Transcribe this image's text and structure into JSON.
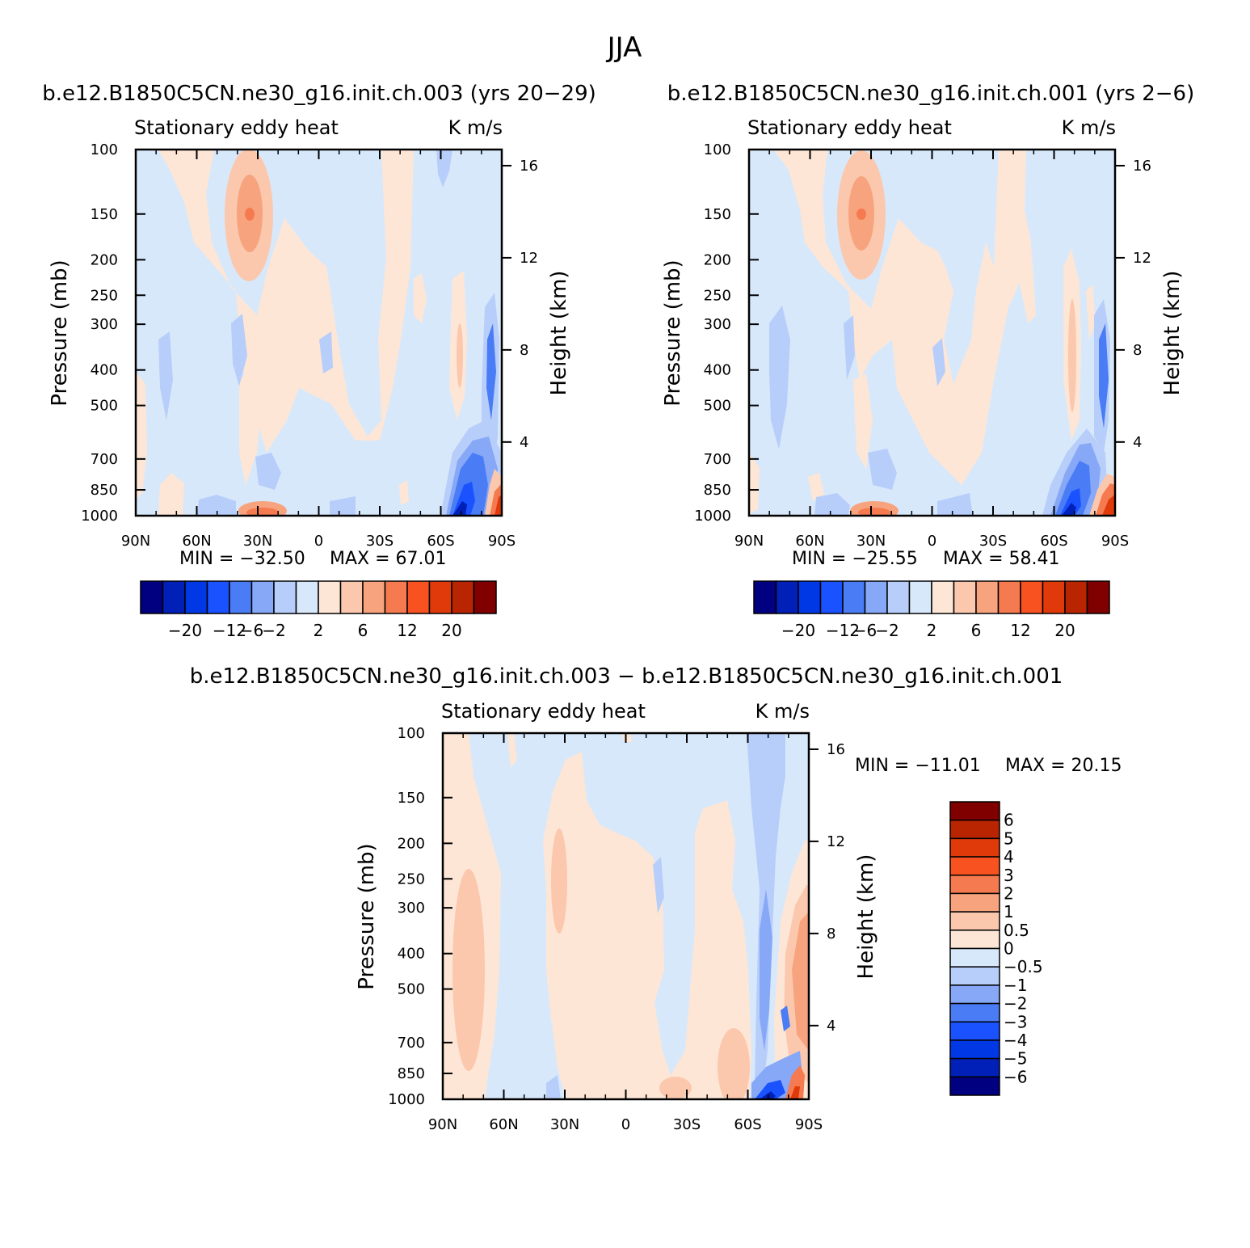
{
  "title": "JJA",
  "chart_data": [
    {
      "type": "heatmap",
      "id": "p1",
      "title": "b.e12.B1850C5CN.ne30_g16.init.ch.003 (yrs 20-29)",
      "left_label": "Stationary eddy heat",
      "right_label": "K m/s",
      "xlabel": "",
      "ylabel": "Pressure (mb)",
      "ylabel_right": "Height (km)",
      "xticks": [
        "90N",
        "60N",
        "30N",
        "0",
        "30S",
        "60S",
        "90S"
      ],
      "yticks": [
        "100",
        "150",
        "200",
        "250",
        "300",
        "400",
        "500",
        "700",
        "850",
        "1000"
      ],
      "yticks_right": [
        "16",
        "12",
        "8",
        "4"
      ],
      "min_label": "MIN = -32.50",
      "max_label": "MAX = 67.01",
      "min": -32.5,
      "max": 67.01,
      "colorbar_labels": [
        "-20",
        "-12",
        "-6",
        "-2",
        "2",
        "6",
        "12",
        "20"
      ]
    },
    {
      "type": "heatmap",
      "id": "p2",
      "title": "b.e12.B1850C5CN.ne30_g16.init.ch.001 (yrs 2-6)",
      "left_label": "Stationary eddy heat",
      "right_label": "K m/s",
      "xlabel": "",
      "ylabel": "Pressure (mb)",
      "ylabel_right": "Height (km)",
      "xticks": [
        "90N",
        "60N",
        "30N",
        "0",
        "30S",
        "60S",
        "90S"
      ],
      "yticks": [
        "100",
        "150",
        "200",
        "250",
        "300",
        "400",
        "500",
        "700",
        "850",
        "1000"
      ],
      "yticks_right": [
        "16",
        "12",
        "8",
        "4"
      ],
      "min_label": "MIN = -25.55",
      "max_label": "MAX = 58.41",
      "min": -25.55,
      "max": 58.41,
      "colorbar_labels": [
        "-20",
        "-12",
        "-6",
        "-2",
        "2",
        "6",
        "12",
        "20"
      ]
    },
    {
      "type": "heatmap",
      "id": "p3",
      "title": "b.e12.B1850C5CN.ne30_g16.init.ch.003 - b.e12.B1850C5CN.ne30_g16.init.ch.001",
      "left_label": "Stationary eddy heat",
      "right_label": "K m/s",
      "xlabel": "",
      "ylabel": "Pressure (mb)",
      "ylabel_right": "Height (km)",
      "xticks": [
        "90N",
        "60N",
        "30N",
        "0",
        "30S",
        "60S",
        "90S"
      ],
      "yticks": [
        "100",
        "150",
        "200",
        "250",
        "300",
        "400",
        "500",
        "700",
        "850",
        "1000"
      ],
      "yticks_right": [
        "16",
        "12",
        "8",
        "4"
      ],
      "min_label": "MIN = -11.01",
      "max_label": "MAX = 20.15",
      "min": -11.01,
      "max": 20.15,
      "colorbar_labels": [
        "6",
        "5",
        "4",
        "3",
        "2",
        "1",
        "0.5",
        "0",
        "-0.5",
        "-1",
        "-2",
        "-3",
        "-4",
        "-5",
        "-6"
      ]
    }
  ],
  "colors": {
    "abs_scale": [
      "#000080",
      "#0020b8",
      "#0038e6",
      "#1a52ff",
      "#4a7cf5",
      "#86a8f7",
      "#b8cefa",
      "#d8e8fb",
      "#fde6d6",
      "#fbc8ae",
      "#f7a47e",
      "#f57a4f",
      "#f75220",
      "#e03a0a",
      "#b82500",
      "#800000"
    ],
    "diff_scale": [
      "#800000",
      "#b82500",
      "#e03a0a",
      "#f75220",
      "#f57a4f",
      "#f7a47e",
      "#fbc8ae",
      "#fde6d6",
      "#d8e8fb",
      "#b8cefa",
      "#86a8f7",
      "#4a7cf5",
      "#1a52ff",
      "#0038e6",
      "#0020b8",
      "#000080"
    ]
  }
}
